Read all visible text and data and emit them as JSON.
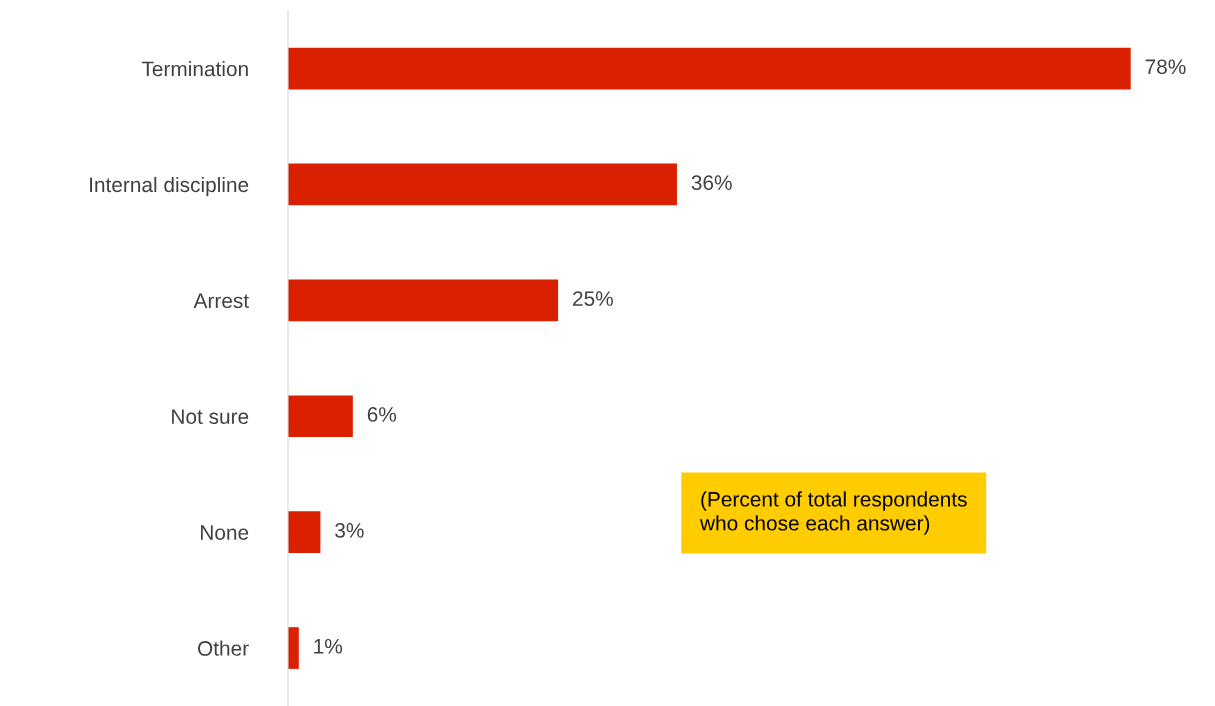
{
  "chart_data": {
    "type": "bar",
    "orientation": "horizontal",
    "categories": [
      "Termination",
      "Internal discipline",
      "Arrest",
      "Not sure",
      "None",
      "Other"
    ],
    "values": [
      78,
      36,
      25,
      6,
      3,
      1
    ],
    "value_labels": [
      "78%",
      "36%",
      "25%",
      "6%",
      "3%",
      "1%"
    ],
    "color": "#d92000",
    "grid": false,
    "legend": false,
    "annotations": [
      "(Percent of total respondents\nwho chose each answer)"
    ]
  }
}
